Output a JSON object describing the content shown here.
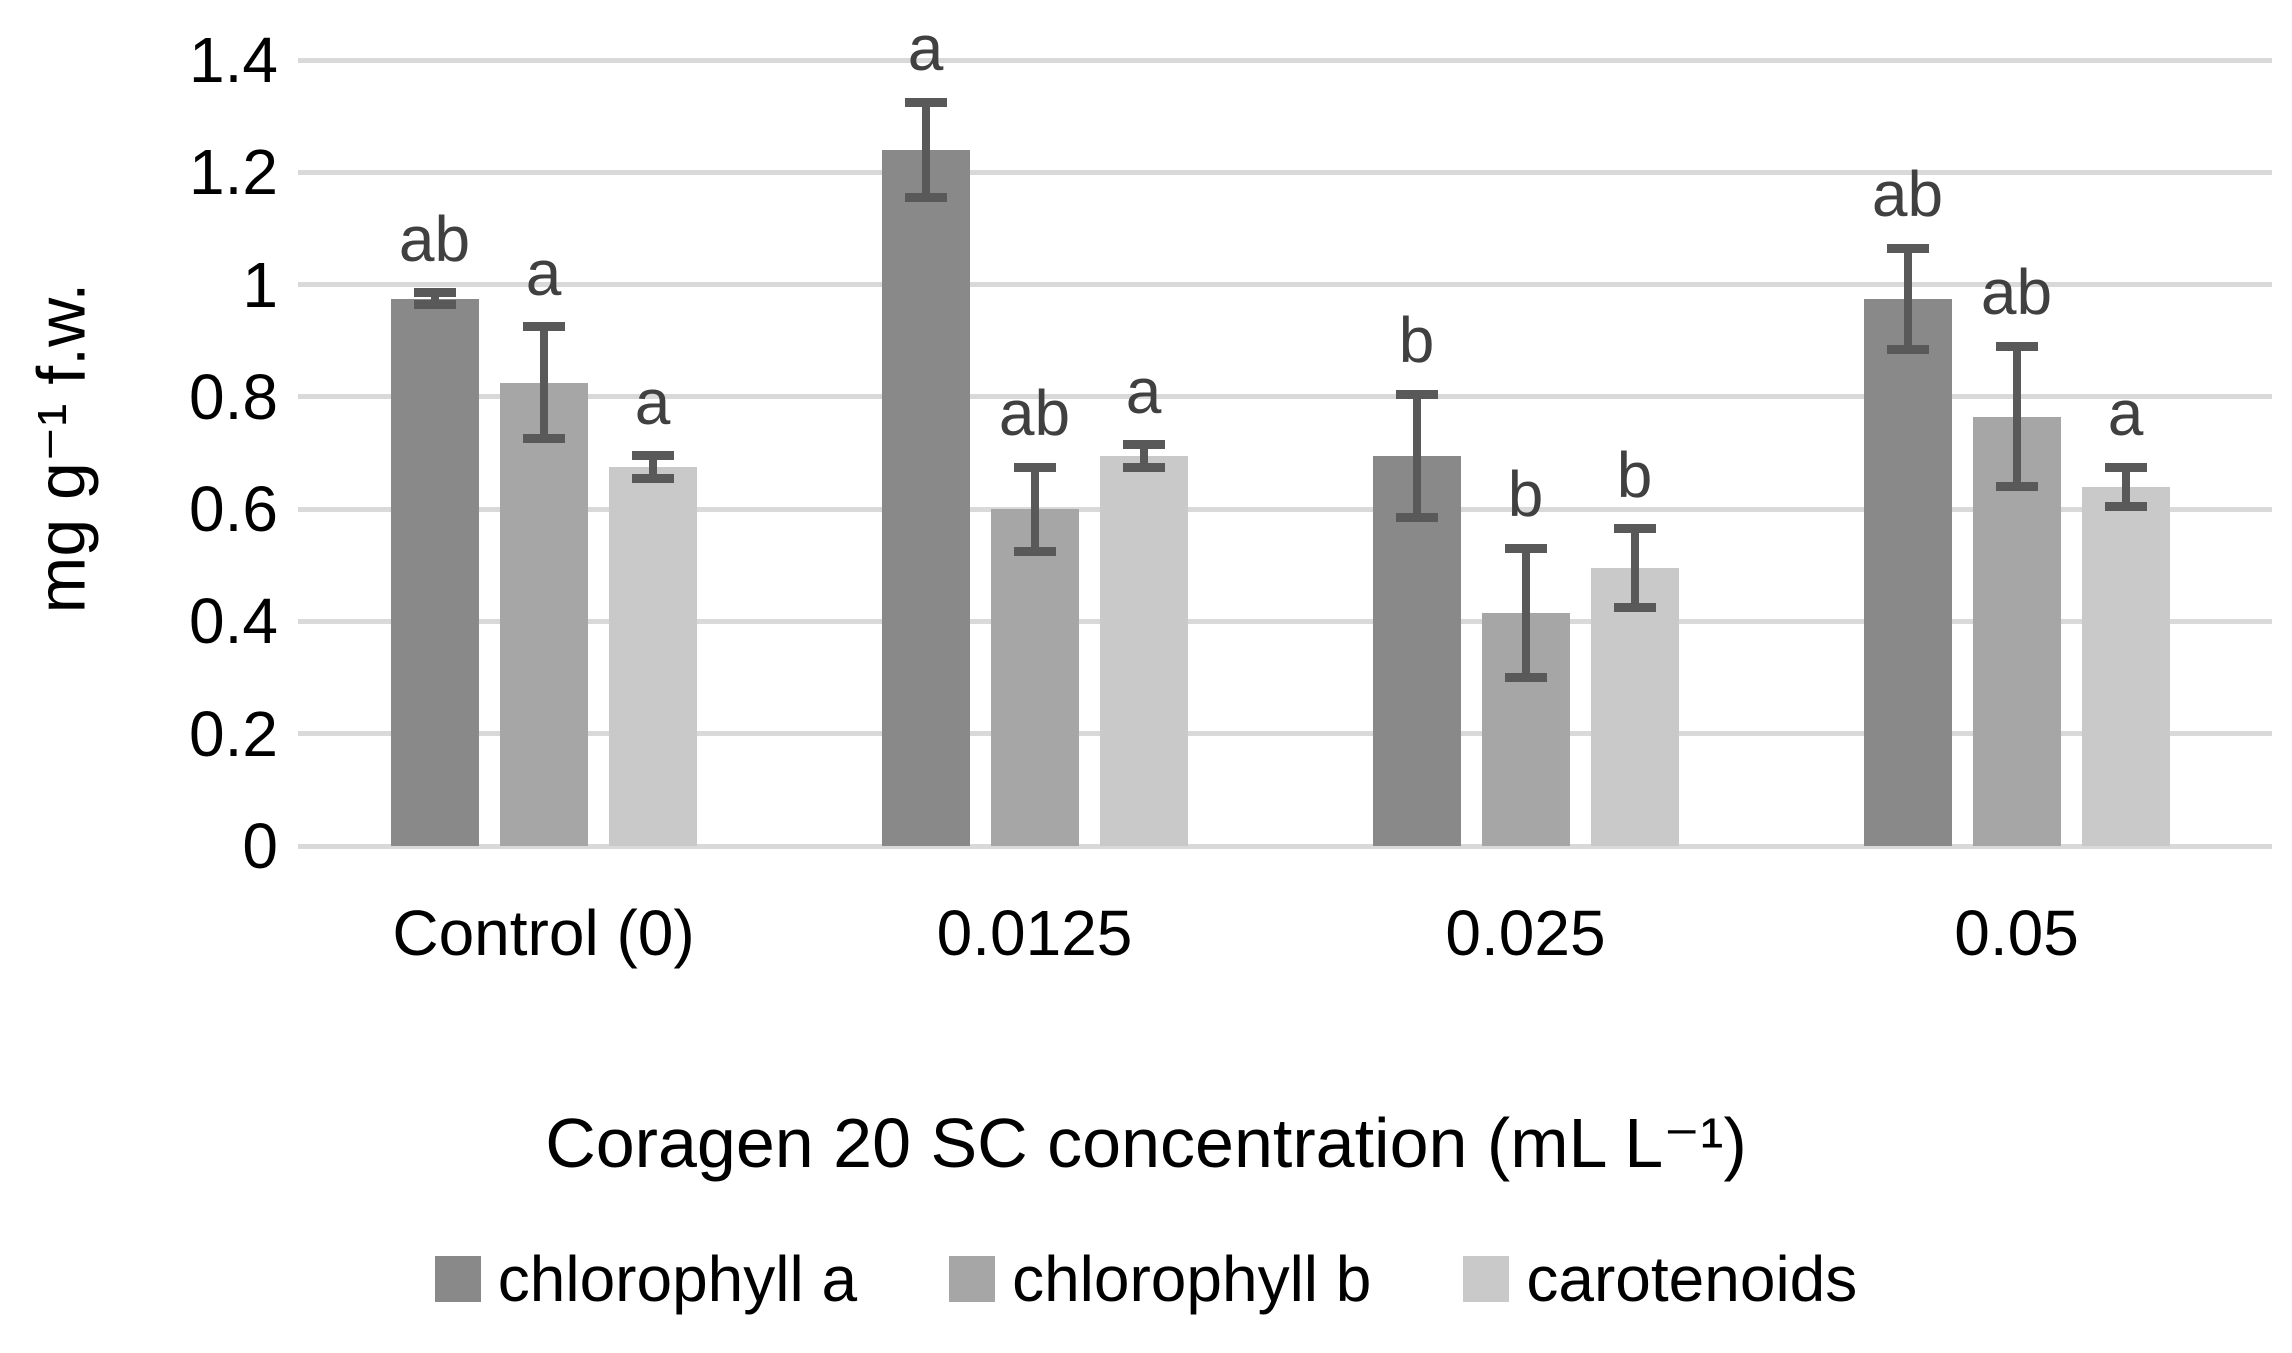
{
  "chart_data": {
    "type": "bar",
    "title": "",
    "xlabel": "Coragen 20 SC concentration (mL L⁻¹)",
    "ylabel": "mg g⁻¹ f.w.",
    "categories": [
      "Control (0)",
      "0.0125",
      "0.025",
      "0.05"
    ],
    "series": [
      {
        "name": "chlorophyll a",
        "color": "#898989",
        "values": [
          0.975,
          1.24,
          0.695,
          0.975
        ],
        "errors": [
          0.01,
          0.085,
          0.11,
          0.09
        ],
        "letters": [
          "ab",
          "a",
          "b",
          "ab"
        ]
      },
      {
        "name": "chlorophyll b",
        "color": "#a6a6a6",
        "values": [
          0.825,
          0.6,
          0.415,
          0.765
        ],
        "errors": [
          0.1,
          0.075,
          0.115,
          0.125
        ],
        "letters": [
          "a",
          "ab",
          "b",
          "ab"
        ]
      },
      {
        "name": "carotenoids",
        "color": "#c9c9c9",
        "values": [
          0.675,
          0.695,
          0.495,
          0.64
        ],
        "errors": [
          0.02,
          0.02,
          0.07,
          0.035
        ],
        "letters": [
          "a",
          "a",
          "b",
          "a"
        ]
      }
    ],
    "yticks": [
      0,
      0.2,
      0.4,
      0.6,
      0.8,
      1,
      1.2,
      1.4
    ],
    "ylim": [
      0,
      1.4
    ],
    "grid": "horizontal",
    "legend_position": "bottom",
    "error_bar_color": "#595959",
    "grid_color": "#d9d9d9",
    "letter_color": "#404040",
    "background_color": "#ffffff"
  }
}
